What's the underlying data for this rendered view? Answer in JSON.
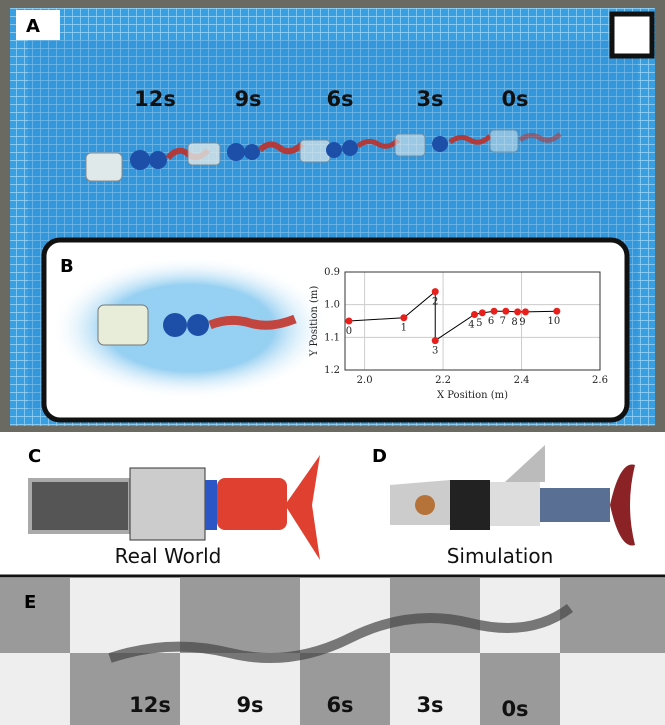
{
  "panels": {
    "a": {
      "label": "A",
      "times": [
        "12s",
        "9s",
        "6s",
        "3s",
        "0s"
      ]
    },
    "b": {
      "label": "B"
    },
    "c": {
      "label": "C",
      "caption": "Real World"
    },
    "d": {
      "label": "D",
      "caption": "Simulation"
    },
    "e": {
      "label": "E",
      "times": [
        "12s",
        "9s",
        "6s",
        "3s",
        "0s"
      ]
    }
  },
  "chart_data": {
    "type": "scatter",
    "x": [
      1.96,
      2.1,
      2.18,
      2.18,
      2.28,
      2.3,
      2.33,
      2.36,
      2.39,
      2.41,
      2.49
    ],
    "values": [
      1.05,
      1.04,
      0.96,
      1.11,
      1.03,
      1.025,
      1.02,
      1.02,
      1.022,
      1.022,
      1.02
    ],
    "point_labels": [
      "0",
      "1",
      "2",
      "3",
      "4",
      "5",
      "6",
      "7",
      "8",
      "9",
      "10"
    ],
    "xlabel": "X Position (m)",
    "ylabel": "Y Position (m)",
    "xlim": [
      1.95,
      2.6
    ],
    "ylim": [
      0.9,
      1.2
    ],
    "y_inverted": true,
    "xticks": [
      {
        "value": 2,
        "label": "2.0"
      },
      2.2,
      2.4,
      2.6
    ],
    "yticks": [
      0.9,
      {
        "value": 1,
        "label": "1.0"
      },
      1.1,
      1.2
    ],
    "grid": true,
    "color": "#e8201c",
    "line_color": "#000000"
  }
}
